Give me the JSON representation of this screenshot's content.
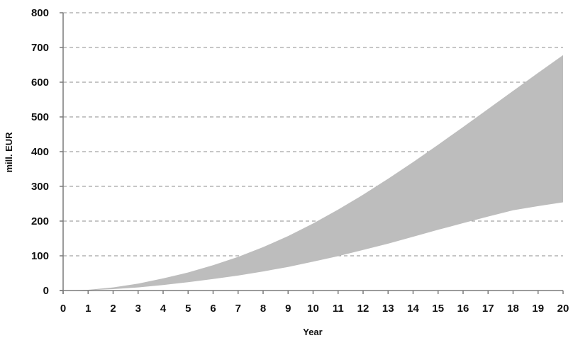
{
  "chart_data": {
    "type": "area",
    "title": "",
    "xlabel": "Year",
    "ylabel": "mill. EUR",
    "xlim": [
      0,
      20
    ],
    "ylim": [
      0,
      800
    ],
    "x_ticks": [
      0,
      1,
      2,
      3,
      4,
      5,
      6,
      7,
      8,
      9,
      10,
      11,
      12,
      13,
      14,
      15,
      16,
      17,
      18,
      19,
      20
    ],
    "y_ticks": [
      0,
      100,
      200,
      300,
      400,
      500,
      600,
      700,
      800
    ],
    "grid": "horizontal dashed",
    "legend": "none",
    "band_color": "#bdbdbd",
    "x": [
      0,
      1,
      2,
      3,
      4,
      5,
      6,
      7,
      8,
      9,
      10,
      11,
      12,
      13,
      14,
      15,
      16,
      17,
      18,
      19,
      20
    ],
    "series": [
      {
        "values": [
          0,
          1,
          4,
          9,
          16,
          24,
          33,
          43,
          55,
          68,
          83,
          99,
          117,
          135,
          155,
          175,
          194,
          213,
          231,
          243,
          254
        ]
      },
      {
        "values": [
          0,
          2,
          9,
          20,
          35,
          52,
          73,
          97,
          125,
          157,
          193,
          233,
          276,
          322,
          370,
          420,
          471,
          523,
          575,
          627,
          678
        ]
      }
    ]
  }
}
